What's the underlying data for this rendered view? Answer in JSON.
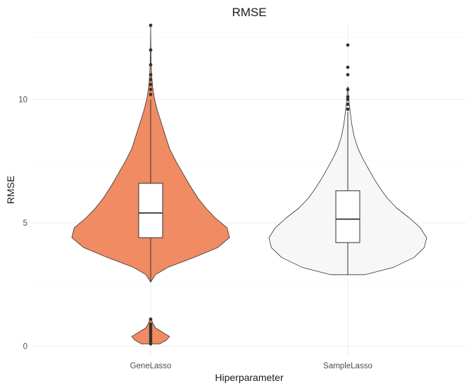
{
  "chart_data": {
    "type": "violin",
    "title": "RMSE",
    "xlabel": "Hiperparameter",
    "ylabel": "RMSE",
    "categories": [
      "GeneLasso",
      "SampleLasso"
    ],
    "ylim": [
      -0.35,
      13.0
    ],
    "yticks": [
      0,
      5,
      10
    ],
    "grid": true,
    "series": [
      {
        "category": "GeneLasso",
        "fill": "#f08b64",
        "box": {
          "q1": 4.4,
          "median": 5.4,
          "q3": 6.6,
          "whisker_low": 2.6,
          "whisker_high": 10.0
        },
        "outliers": [
          10.2,
          10.4,
          10.6,
          10.8,
          11.0,
          11.4,
          12.0,
          13.0,
          1.1,
          0.9,
          0.8,
          0.7,
          0.6,
          0.5,
          0.4,
          0.3,
          0.2,
          0.1
        ],
        "density": [
          [
            0.1,
            0.12
          ],
          [
            0.25,
            0.2
          ],
          [
            0.4,
            0.24
          ],
          [
            0.55,
            0.16
          ],
          [
            0.75,
            0.06
          ],
          [
            0.95,
            0.025
          ],
          [
            1.1,
            0.01
          ],
          [
            2.6,
            0.0
          ],
          [
            2.9,
            0.06
          ],
          [
            3.2,
            0.22
          ],
          [
            3.6,
            0.55
          ],
          [
            4.0,
            0.85
          ],
          [
            4.4,
            1.0
          ],
          [
            4.8,
            0.97
          ],
          [
            5.2,
            0.82
          ],
          [
            5.6,
            0.7
          ],
          [
            6.0,
            0.6
          ],
          [
            6.5,
            0.5
          ],
          [
            7.0,
            0.41
          ],
          [
            7.5,
            0.32
          ],
          [
            8.0,
            0.24
          ],
          [
            8.5,
            0.19
          ],
          [
            9.0,
            0.14
          ],
          [
            9.5,
            0.09
          ],
          [
            10.0,
            0.05
          ],
          [
            10.5,
            0.025
          ],
          [
            11.0,
            0.012
          ],
          [
            11.5,
            0.006
          ],
          [
            12.0,
            0.003
          ],
          [
            13.0,
            0.0
          ]
        ]
      },
      {
        "category": "SampleLasso",
        "fill": "#f7f7f7",
        "box": {
          "q1": 4.2,
          "median": 5.15,
          "q3": 6.3,
          "whisker_low": 2.9,
          "whisker_high": 9.5
        },
        "outliers": [
          9.6,
          9.8,
          10.0,
          10.1,
          10.4,
          11.0,
          11.3,
          12.2
        ],
        "density": [
          [
            2.9,
            0.22
          ],
          [
            3.2,
            0.58
          ],
          [
            3.6,
            0.84
          ],
          [
            4.0,
            0.97
          ],
          [
            4.4,
            1.0
          ],
          [
            4.8,
            0.92
          ],
          [
            5.2,
            0.78
          ],
          [
            5.6,
            0.62
          ],
          [
            6.0,
            0.5
          ],
          [
            6.4,
            0.41
          ],
          [
            6.8,
            0.33
          ],
          [
            7.2,
            0.26
          ],
          [
            7.6,
            0.19
          ],
          [
            8.0,
            0.13
          ],
          [
            8.5,
            0.08
          ],
          [
            9.0,
            0.05
          ],
          [
            9.5,
            0.03
          ],
          [
            10.0,
            0.012
          ],
          [
            10.5,
            0.004
          ],
          [
            12.2,
            0.0
          ]
        ]
      }
    ]
  }
}
